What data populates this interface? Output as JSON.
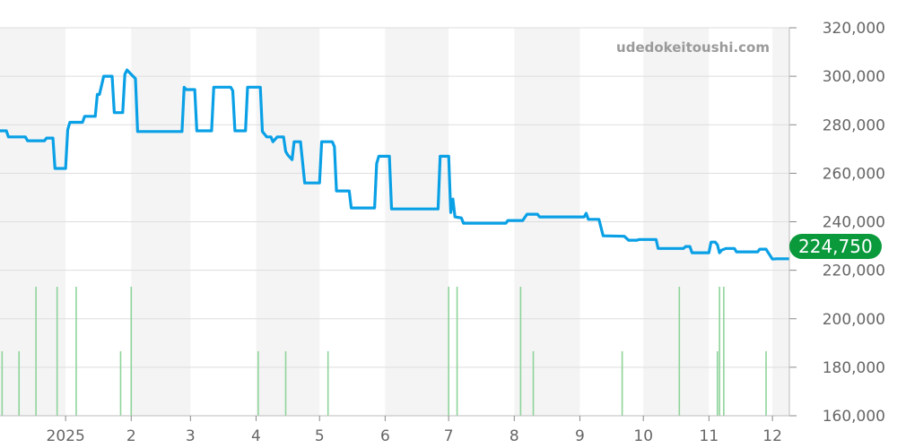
{
  "watermark": "udedokeitoushi.com",
  "current_price": "224,750",
  "colors": {
    "line": "#0aa0e6",
    "volume": "#8fd49a",
    "badge": "#0a9a3c",
    "band": "#f4f4f4",
    "grid": "#dddddd"
  },
  "chart_data": {
    "type": "line",
    "xlim": [
      "2024-12-01",
      "2025-12-09"
    ],
    "ylim": [
      160000,
      320000
    ],
    "grid": true,
    "y_ticks": [
      {
        "value": 160000,
        "label": "160,000"
      },
      {
        "value": 180000,
        "label": "180,000"
      },
      {
        "value": 200000,
        "label": "200,000"
      },
      {
        "value": 220000,
        "label": "220,000"
      },
      {
        "value": 240000,
        "label": "240,000"
      },
      {
        "value": 260000,
        "label": "260,000"
      },
      {
        "value": 280000,
        "label": "280,000"
      },
      {
        "value": 300000,
        "label": "300,000"
      },
      {
        "value": 320000,
        "label": "320,000"
      }
    ],
    "x_ticks": [
      {
        "date": "2025-01-01",
        "label": "2025"
      },
      {
        "date": "2025-02-01",
        "label": "2"
      },
      {
        "date": "2025-03-01",
        "label": "3"
      },
      {
        "date": "2025-04-01",
        "label": "4"
      },
      {
        "date": "2025-05-01",
        "label": "5"
      },
      {
        "date": "2025-06-01",
        "label": "6"
      },
      {
        "date": "2025-07-01",
        "label": "7"
      },
      {
        "date": "2025-08-01",
        "label": "8"
      },
      {
        "date": "2025-09-01",
        "label": "9"
      },
      {
        "date": "2025-10-01",
        "label": "10"
      },
      {
        "date": "2025-11-01",
        "label": "11"
      },
      {
        "date": "2025-12-01",
        "label": "12"
      }
    ],
    "series": [
      {
        "points": [
          [
            "2024-12-01",
            277500
          ],
          [
            "2024-12-04",
            277500
          ],
          [
            "2024-12-05",
            275000
          ],
          [
            "2024-12-13",
            275000
          ],
          [
            "2024-12-14",
            273400
          ],
          [
            "2024-12-22",
            273400
          ],
          [
            "2024-12-23",
            274500
          ],
          [
            "2024-12-26",
            274500
          ],
          [
            "2024-12-27",
            262000
          ],
          [
            "2025-01-01",
            262000
          ],
          [
            "2025-01-02",
            278000
          ],
          [
            "2025-01-03",
            281000
          ],
          [
            "2025-01-09",
            281000
          ],
          [
            "2025-01-10",
            283500
          ],
          [
            "2025-01-15",
            283500
          ],
          [
            "2025-01-16",
            292500
          ],
          [
            "2025-01-17",
            292500
          ],
          [
            "2025-01-19",
            300000
          ],
          [
            "2025-01-23",
            300000
          ],
          [
            "2025-01-24",
            285000
          ],
          [
            "2025-01-28",
            285000
          ],
          [
            "2025-01-29",
            300800
          ],
          [
            "2025-01-30",
            302600
          ],
          [
            "2025-02-01",
            300800
          ],
          [
            "2025-02-03",
            299000
          ],
          [
            "2025-02-04",
            277200
          ],
          [
            "2025-02-25",
            277200
          ],
          [
            "2025-02-26",
            295500
          ],
          [
            "2025-02-27",
            294500
          ],
          [
            "2025-03-03",
            294500
          ],
          [
            "2025-03-04",
            277500
          ],
          [
            "2025-03-11",
            277500
          ],
          [
            "2025-03-12",
            295500
          ],
          [
            "2025-03-20",
            295500
          ],
          [
            "2025-03-21",
            294000
          ],
          [
            "2025-03-22",
            277500
          ],
          [
            "2025-03-27",
            277500
          ],
          [
            "2025-03-28",
            295500
          ],
          [
            "2025-04-03",
            295500
          ],
          [
            "2025-04-04",
            277200
          ],
          [
            "2025-04-06",
            275000
          ],
          [
            "2025-04-08",
            275000
          ],
          [
            "2025-04-09",
            273000
          ],
          [
            "2025-04-11",
            275000
          ],
          [
            "2025-04-14",
            275000
          ],
          [
            "2025-04-15",
            269000
          ],
          [
            "2025-04-16",
            267500
          ],
          [
            "2025-04-18",
            265600
          ],
          [
            "2025-04-19",
            273000
          ],
          [
            "2025-04-22",
            273000
          ],
          [
            "2025-04-24",
            256000
          ],
          [
            "2025-05-01",
            256000
          ],
          [
            "2025-05-02",
            273000
          ],
          [
            "2025-05-07",
            273000
          ],
          [
            "2025-05-08",
            271000
          ],
          [
            "2025-05-09",
            252700
          ],
          [
            "2025-05-15",
            252700
          ],
          [
            "2025-05-16",
            245700
          ],
          [
            "2025-05-27",
            245700
          ],
          [
            "2025-05-28",
            264000
          ],
          [
            "2025-05-29",
            267000
          ],
          [
            "2025-06-03",
            267000
          ],
          [
            "2025-06-04",
            245300
          ],
          [
            "2025-06-26",
            245300
          ],
          [
            "2025-06-27",
            267000
          ],
          [
            "2025-07-01",
            267000
          ],
          [
            "2025-07-02",
            243800
          ],
          [
            "2025-07-03",
            249400
          ],
          [
            "2025-07-04",
            242000
          ],
          [
            "2025-07-07",
            241600
          ],
          [
            "2025-07-08",
            239400
          ],
          [
            "2025-07-28",
            239400
          ],
          [
            "2025-07-29",
            240500
          ],
          [
            "2025-08-05",
            240500
          ],
          [
            "2025-08-07",
            243100
          ],
          [
            "2025-08-12",
            243100
          ],
          [
            "2025-08-13",
            242000
          ],
          [
            "2025-09-03",
            242000
          ],
          [
            "2025-09-04",
            243500
          ],
          [
            "2025-09-05",
            241000
          ],
          [
            "2025-09-10",
            241000
          ],
          [
            "2025-09-12",
            234200
          ],
          [
            "2025-09-22",
            234000
          ],
          [
            "2025-09-24",
            232400
          ],
          [
            "2025-09-28",
            232400
          ],
          [
            "2025-09-29",
            232700
          ],
          [
            "2025-10-07",
            232700
          ],
          [
            "2025-10-08",
            229000
          ],
          [
            "2025-10-20",
            229000
          ],
          [
            "2025-10-21",
            229800
          ],
          [
            "2025-10-23",
            229800
          ],
          [
            "2025-10-24",
            227200
          ],
          [
            "2025-11-01",
            227200
          ],
          [
            "2025-11-02",
            231600
          ],
          [
            "2025-11-04",
            231600
          ],
          [
            "2025-11-05",
            230500
          ],
          [
            "2025-11-06",
            227200
          ],
          [
            "2025-11-07",
            228300
          ],
          [
            "2025-11-09",
            229000
          ],
          [
            "2025-11-13",
            229000
          ],
          [
            "2025-11-14",
            227600
          ],
          [
            "2025-11-24",
            227600
          ],
          [
            "2025-11-25",
            228700
          ],
          [
            "2025-11-28",
            228700
          ],
          [
            "2025-12-01",
            224600
          ],
          [
            "2025-12-03",
            224750
          ],
          [
            "2025-12-09",
            224750
          ]
        ]
      }
    ],
    "volume": [
      [
        "2024-12-02",
        1
      ],
      [
        "2024-12-10",
        1
      ],
      [
        "2024-12-18",
        2
      ],
      [
        "2024-12-28",
        2
      ],
      [
        "2025-01-06",
        2
      ],
      [
        "2025-01-27",
        1
      ],
      [
        "2025-02-01",
        2
      ],
      [
        "2025-04-02",
        1
      ],
      [
        "2025-04-15",
        1
      ],
      [
        "2025-05-05",
        1
      ],
      [
        "2025-07-01",
        2
      ],
      [
        "2025-07-05",
        2
      ],
      [
        "2025-08-04",
        2
      ],
      [
        "2025-08-10",
        1
      ],
      [
        "2025-09-21",
        1
      ],
      [
        "2025-10-18",
        2
      ],
      [
        "2025-11-05",
        1
      ],
      [
        "2025-11-06",
        2
      ],
      [
        "2025-11-08",
        2
      ],
      [
        "2025-11-28",
        1
      ]
    ]
  }
}
